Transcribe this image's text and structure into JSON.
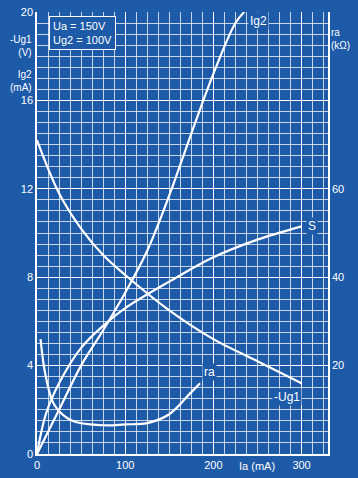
{
  "chart_data": {
    "type": "line",
    "annotations": [
      "Ua = 150V",
      "Ug2 = 100V"
    ],
    "x_label": "Ia (mA)",
    "y_labels": [
      "-Ug1 (V)",
      "Ig2 (mA)"
    ],
    "y2_label": "ra (kΩ)",
    "xlim": [
      0,
      330
    ],
    "xticks": [
      0,
      100,
      200,
      300
    ],
    "ylim": [
      0,
      20
    ],
    "yticks": [
      0,
      4,
      8,
      12,
      16,
      20
    ],
    "y2lim": [
      0,
      100
    ],
    "y2ticks": [
      20,
      40,
      60
    ],
    "grid": true,
    "color": "#ffffff",
    "series": [
      {
        "name": "Ig2",
        "x": [
          0,
          25,
          50,
          75,
          100,
          125,
          150,
          175,
          200,
          225,
          235
        ],
        "values": [
          0,
          2,
          4,
          5.6,
          7.3,
          9.2,
          11.7,
          14.5,
          17.2,
          19.5,
          20
        ]
      },
      {
        "name": "S",
        "x": [
          0,
          10,
          25,
          50,
          75,
          100,
          150,
          200,
          250,
          300
        ],
        "values": [
          0,
          1.8,
          3.2,
          4.8,
          5.8,
          6.6,
          7.8,
          8.9,
          9.7,
          10.3
        ]
      },
      {
        "name": "-Ug1",
        "x": [
          0,
          25,
          50,
          75,
          100,
          150,
          200,
          250,
          300
        ],
        "values": [
          14.2,
          11.8,
          10.2,
          9,
          8.1,
          6.5,
          5.2,
          4.2,
          3.2
        ]
      },
      {
        "name": "ra",
        "axis": "y2",
        "x": [
          4,
          10,
          20,
          40,
          75,
          100,
          125,
          150,
          175,
          185
        ],
        "values": [
          26,
          17.5,
          11,
          7.5,
          6.5,
          6.7,
          7,
          9,
          14,
          16
        ]
      }
    ]
  }
}
